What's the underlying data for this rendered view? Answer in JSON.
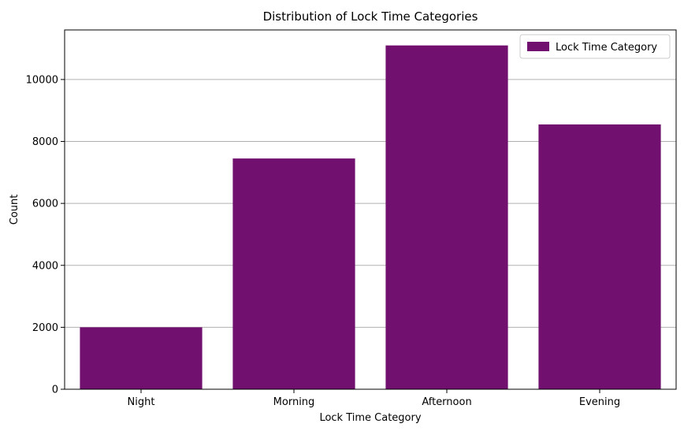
{
  "chart_data": {
    "type": "bar",
    "title": "Distribution of Lock Time Categories",
    "xlabel": "Lock Time Category",
    "ylabel": "Count",
    "categories": [
      "Night",
      "Morning",
      "Afternoon",
      "Evening"
    ],
    "series": [
      {
        "name": "Lock Time Category",
        "values": [
          2000,
          7450,
          11100,
          8550
        ]
      }
    ],
    "ylim": [
      0,
      11600
    ],
    "yticks": [
      0,
      2000,
      4000,
      6000,
      8000,
      10000
    ],
    "grid": "y",
    "legend": "top-right",
    "bar_color": "#72106F"
  }
}
